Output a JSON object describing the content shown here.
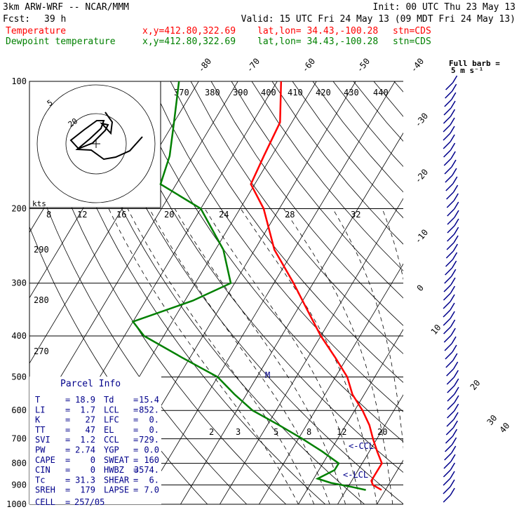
{
  "header": {
    "model": "3km ARW-WRF -- NCAR/MMM",
    "init": "Init: 00 UTC Thu 23 May 13",
    "fcst_label": "Fcst:",
    "fcst_value": "39 h",
    "valid": "Valid: 15 UTC Fri 24 May 13 (09 MDT Fri 24 May 13)"
  },
  "legend": {
    "items": [
      {
        "label": "Temperature",
        "coords": "x,y=412.80,322.69",
        "latlon": "lat,lon= 34.43,-100.28",
        "stn": "stn=CDS",
        "color": "#ff0000"
      },
      {
        "label": "Dewpoint temperature",
        "coords": "x,y=412.80,322.69",
        "latlon": "lat,lon= 34.43,-100.28",
        "stn": "stn=CDS",
        "color": "#008000"
      }
    ]
  },
  "colors": {
    "temperature": "#ff0000",
    "dewpoint": "#008000",
    "wind": "#00008b",
    "parcel_title": "#00008b",
    "grid": "#000000"
  },
  "barb_key": {
    "line1": "Full barb =",
    "line2": "5 m s⁻¹"
  },
  "hodograph": {
    "rings": [
      "5",
      "20"
    ],
    "units": "kts"
  },
  "chart_data": {
    "type": "line",
    "title": "",
    "y_axis": {
      "scale": "log-pressure",
      "range_hpa": [
        1000,
        100
      ],
      "ticks": [
        100,
        200,
        300,
        400,
        500,
        600,
        700,
        800,
        900,
        1000
      ]
    },
    "isotherm_labels_c": [
      "-80",
      "-70",
      "-60",
      "-50",
      "-40",
      "-30",
      "-20",
      "-10",
      "0",
      "10",
      "20",
      "30",
      "40"
    ],
    "theta_labels_upper": [
      "370",
      "380",
      "390",
      "400",
      "410",
      "420",
      "430",
      "440"
    ],
    "theta_labels_left": [
      "290",
      "280",
      "270"
    ],
    "thetae_labels": [
      "8",
      "12",
      "16",
      "20",
      "24",
      "28",
      "32"
    ],
    "mixing_ratio_labels": [
      "2",
      "3",
      "5",
      "8",
      "12",
      "20"
    ],
    "series": [
      {
        "name": "Temperature",
        "points": [
          {
            "p": 100,
            "t": -69
          },
          {
            "p": 125,
            "t": -63
          },
          {
            "p": 150,
            "t": -62
          },
          {
            "p": 175,
            "t": -61
          },
          {
            "p": 200,
            "t": -54
          },
          {
            "p": 250,
            "t": -45
          },
          {
            "p": 300,
            "t": -35
          },
          {
            "p": 350,
            "t": -27
          },
          {
            "p": 400,
            "t": -20
          },
          {
            "p": 450,
            "t": -13
          },
          {
            "p": 500,
            "t": -7
          },
          {
            "p": 550,
            "t": -3
          },
          {
            "p": 600,
            "t": 2
          },
          {
            "p": 650,
            "t": 6
          },
          {
            "p": 700,
            "t": 9
          },
          {
            "p": 750,
            "t": 12
          },
          {
            "p": 800,
            "t": 15
          },
          {
            "p": 850,
            "t": 15
          },
          {
            "p": 880,
            "t": 15
          },
          {
            "p": 900,
            "t": 16
          },
          {
            "p": 925,
            "t": 19
          }
        ]
      },
      {
        "name": "Dewpoint temperature",
        "points": [
          {
            "p": 100,
            "t": -95
          },
          {
            "p": 125,
            "t": -90
          },
          {
            "p": 150,
            "t": -86
          },
          {
            "p": 175,
            "t": -84
          },
          {
            "p": 200,
            "t": -70
          },
          {
            "p": 250,
            "t": -58
          },
          {
            "p": 300,
            "t": -51
          },
          {
            "p": 330,
            "t": -58
          },
          {
            "p": 370,
            "t": -70
          },
          {
            "p": 400,
            "t": -65
          },
          {
            "p": 450,
            "t": -52
          },
          {
            "p": 500,
            "t": -40
          },
          {
            "p": 550,
            "t": -33
          },
          {
            "p": 600,
            "t": -26
          },
          {
            "p": 650,
            "t": -17
          },
          {
            "p": 700,
            "t": -9
          },
          {
            "p": 750,
            "t": -2
          },
          {
            "p": 800,
            "t": 4
          },
          {
            "p": 830,
            "t": 4
          },
          {
            "p": 870,
            "t": 1
          },
          {
            "p": 890,
            "t": 5
          },
          {
            "p": 910,
            "t": 11
          },
          {
            "p": 925,
            "t": 15
          }
        ]
      }
    ],
    "level_markers": [
      {
        "label": "<-CCL",
        "p": 729
      },
      {
        "label": "<-LCL",
        "p": 852
      },
      {
        "label": "M",
        "p": 495
      }
    ]
  },
  "parcel_info": {
    "title": "Parcel Info",
    "rows": [
      {
        "l": "T",
        "lv": "18.9",
        "r": "Td",
        "rv": "15.4"
      },
      {
        "l": "LI",
        "lv": "1.7",
        "r": "LCL",
        "rv": "852."
      },
      {
        "l": "K",
        "lv": "27",
        "r": "LFC",
        "rv": "0."
      },
      {
        "l": "TT",
        "lv": "47",
        "r": "EL",
        "rv": "0."
      },
      {
        "l": "SVI",
        "lv": "1.2",
        "r": "CCL",
        "rv": "729."
      },
      {
        "l": "PW",
        "lv": "2.74",
        "r": "YGP",
        "rv": "0.0"
      },
      {
        "l": "CAPE",
        "lv": "0",
        "r": "SWEAT",
        "rv": "160"
      },
      {
        "l": "CIN",
        "lv": "0",
        "r": "HWBZ",
        "rv": "3574."
      },
      {
        "l": "Tc",
        "lv": "31.3",
        "r": "SHEAR",
        "rv": "6."
      },
      {
        "l": "SREH",
        "lv": "179",
        "r": "LAPSE",
        "rv": "7.0"
      }
    ],
    "cell_label": "CELL",
    "cell_value": "257/05"
  }
}
